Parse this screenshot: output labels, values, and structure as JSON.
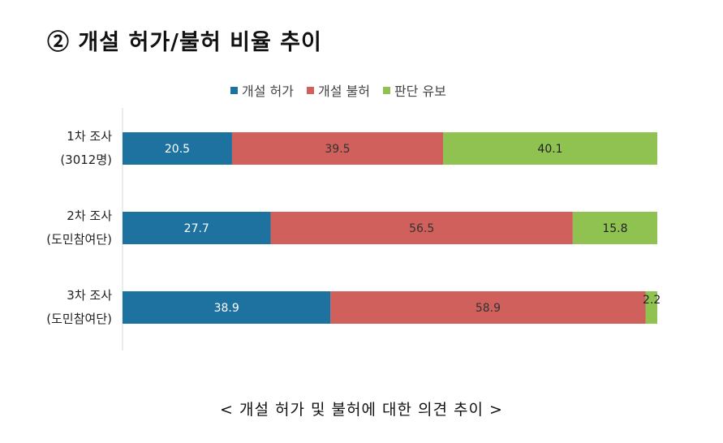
{
  "heading": "② 개설 허가/불허 비율 추이",
  "caption": "< 개설 허가 및 불허에 대한 의견 추이 >",
  "chart_data": {
    "type": "bar",
    "orientation": "horizontal",
    "stacked": true,
    "legend_position": "top",
    "grid": false,
    "categories": [
      [
        "1차 조사",
        "(3012명)"
      ],
      [
        "2차 조사",
        "(도민참여단)"
      ],
      [
        "3차 조사",
        "(도민참여단)"
      ]
    ],
    "series": [
      {
        "name": "개설 허가",
        "color": "#1d72a0",
        "label_color": "#ffffff",
        "values": [
          20.5,
          27.7,
          38.9
        ]
      },
      {
        "name": "개설 불허",
        "color": "#d0605b",
        "label_color": "#333333",
        "values": [
          39.5,
          56.5,
          58.9
        ]
      },
      {
        "name": "판단 유보",
        "color": "#8fc250",
        "label_color": "#222222",
        "values": [
          40.1,
          15.8,
          2.2
        ]
      }
    ]
  }
}
